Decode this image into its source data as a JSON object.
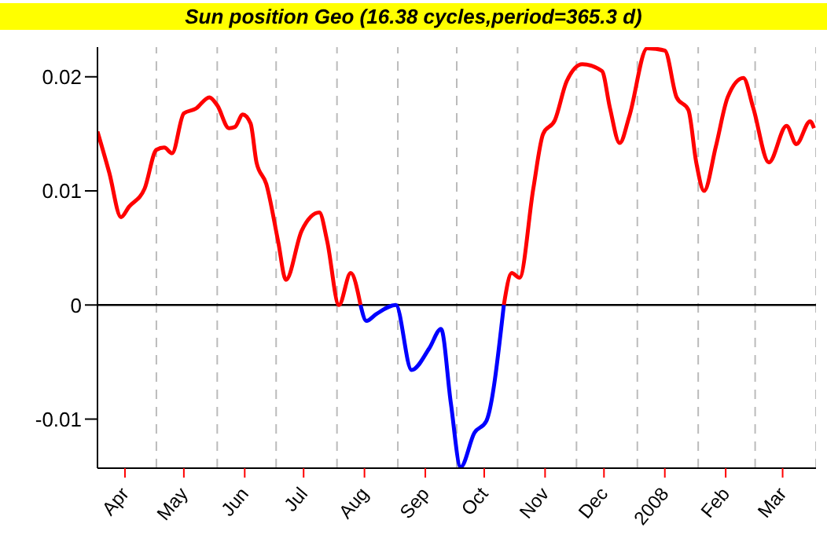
{
  "chart_data": {
    "type": "line",
    "title": "Sun position Geo  (16.38 cycles,period=365.3 d)",
    "xlim": [
      "2007-04-01",
      "2008-04-01"
    ],
    "xticks": [
      {
        "value": "2007-04-01",
        "label": null
      },
      {
        "value": "2007-04-15",
        "label": "Apr"
      },
      {
        "value": "2007-05-01",
        "label": null
      },
      {
        "value": "2007-05-15",
        "label": "May"
      },
      {
        "value": "2007-06-01",
        "label": null
      },
      {
        "value": "2007-06-15",
        "label": "Jun"
      },
      {
        "value": "2007-07-01",
        "label": null
      },
      {
        "value": "2007-07-15",
        "label": "Jul"
      },
      {
        "value": "2007-08-01",
        "label": null
      },
      {
        "value": "2007-08-15",
        "label": "Aug"
      },
      {
        "value": "2007-09-01",
        "label": null
      },
      {
        "value": "2007-09-15",
        "label": "Sep"
      },
      {
        "value": "2007-10-01",
        "label": null
      },
      {
        "value": "2007-10-15",
        "label": "Oct"
      },
      {
        "value": "2007-11-01",
        "label": null
      },
      {
        "value": "2007-11-15",
        "label": "Nov"
      },
      {
        "value": "2007-12-01",
        "label": null
      },
      {
        "value": "2007-12-15",
        "label": "Dec"
      },
      {
        "value": "2008-01-01",
        "label": null
      },
      {
        "value": "2008-01-15",
        "label": "2008"
      },
      {
        "value": "2008-02-01",
        "label": null
      },
      {
        "value": "2008-02-15",
        "label": "Feb"
      },
      {
        "value": "2008-03-01",
        "label": null
      },
      {
        "value": "2008-03-15",
        "label": "Mar"
      },
      {
        "value": "2008-04-01",
        "label": null
      }
    ],
    "ylim": [
      -0.0143,
      0.0226
    ],
    "yticks": [
      {
        "value": -0.01,
        "label": "-0.01"
      },
      {
        "value": 0,
        "label": "0"
      },
      {
        "value": 0.01,
        "label": "0.01"
      },
      {
        "value": 0.02,
        "label": "0.02"
      }
    ],
    "grid": "x",
    "marker": "none",
    "line_style": "solid",
    "ref_lines": [
      {
        "axis": "y",
        "value": 0,
        "color": "#000000"
      }
    ],
    "series": [
      {
        "color": "#ff0000",
        "x": [
          "2007-04-01",
          "2007-04-07",
          "2007-04-13",
          "2007-04-17",
          "2007-04-25",
          "2007-05-01",
          "2007-05-05",
          "2007-05-09",
          "2007-05-15",
          "2007-05-21",
          "2007-05-28",
          "2007-06-01",
          "2007-06-07",
          "2007-06-10",
          "2007-06-14",
          "2007-06-18",
          "2007-06-21",
          "2007-06-26",
          "2007-07-02",
          "2007-07-06",
          "2007-07-14",
          "2007-07-23",
          "2007-07-27",
          "2007-08-02",
          "2007-08-08",
          "2007-08-13",
          "2007-09-15",
          "2007-10-25",
          "2007-10-29",
          "2007-11-02",
          "2007-11-09",
          "2007-11-14",
          "2007-11-20",
          "2007-11-26",
          "2007-12-04",
          "2007-12-14",
          "2007-12-18",
          "2007-12-23",
          "2007-12-28",
          "2008-01-06",
          "2008-01-15",
          "2008-01-21",
          "2008-01-27",
          "2008-01-31",
          "2008-02-04",
          "2008-02-10",
          "2008-02-16",
          "2008-02-24",
          "2008-02-29",
          "2008-03-08",
          "2008-03-17",
          "2008-03-22",
          "2008-03-29",
          "2008-03-31"
        ],
        "values": [
          0.0152,
          0.0116,
          0.0077,
          0.0086,
          0.0102,
          0.0136,
          0.0138,
          0.0133,
          0.0168,
          0.0172,
          0.0182,
          0.0175,
          0.0155,
          0.0156,
          0.0167,
          0.0159,
          0.0125,
          0.0106,
          0.0056,
          0.0022,
          0.0065,
          0.0081,
          0.0056,
          0.0,
          0.0028,
          0.0,
          null,
          0.0,
          0.0028,
          0.0024,
          0.0102,
          0.015,
          0.0162,
          0.0196,
          0.0211,
          0.0205,
          0.0173,
          0.0142,
          0.0166,
          0.0225,
          0.0223,
          0.0182,
          0.0171,
          0.0125,
          0.01,
          0.0139,
          0.0182,
          0.0199,
          0.0173,
          0.0125,
          0.0157,
          0.0141,
          0.0161,
          0.0155
        ]
      },
      {
        "color": "#0000ff",
        "x": [
          "2007-08-13",
          "2007-08-16",
          "2007-08-21",
          "2007-08-31",
          "2007-09-08",
          "2007-09-17",
          "2007-09-23",
          "2007-09-28",
          "2007-10-03",
          "2007-10-10",
          "2007-10-16",
          "2007-10-25"
        ],
        "values": [
          0.0,
          -0.0014,
          -0.0008,
          0.0,
          -0.0057,
          -0.0038,
          -0.0021,
          -0.0086,
          -0.0142,
          -0.0112,
          -0.0102,
          0.0
        ]
      }
    ]
  }
}
